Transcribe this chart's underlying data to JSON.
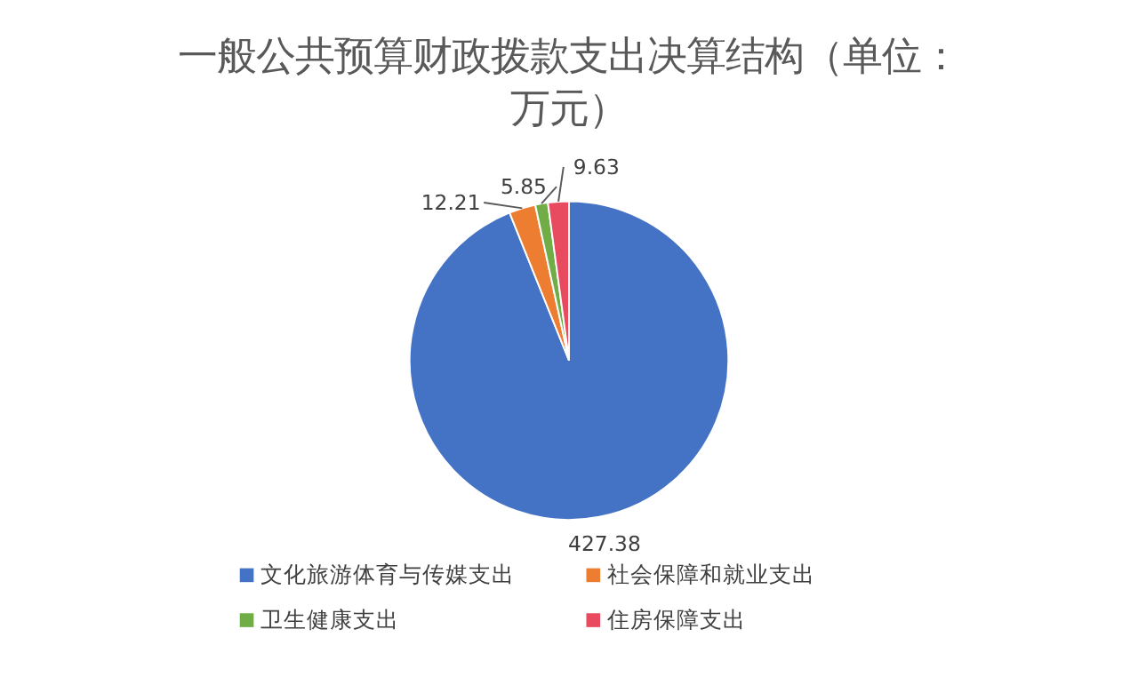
{
  "chart_data": {
    "type": "pie",
    "title": "一般公共预算财政拨款支出决算结构（单位：万元）",
    "categories": [
      "文化旅游体育与传媒支出",
      "社会保障和就业支出",
      "卫生健康支出",
      "住房保障支出"
    ],
    "values": [
      427.38,
      12.21,
      5.85,
      9.63
    ],
    "colors": [
      "#4472c4",
      "#ed7d31",
      "#70ad47",
      "#e84a5f"
    ],
    "data_labels": true,
    "legend": "bottom"
  }
}
